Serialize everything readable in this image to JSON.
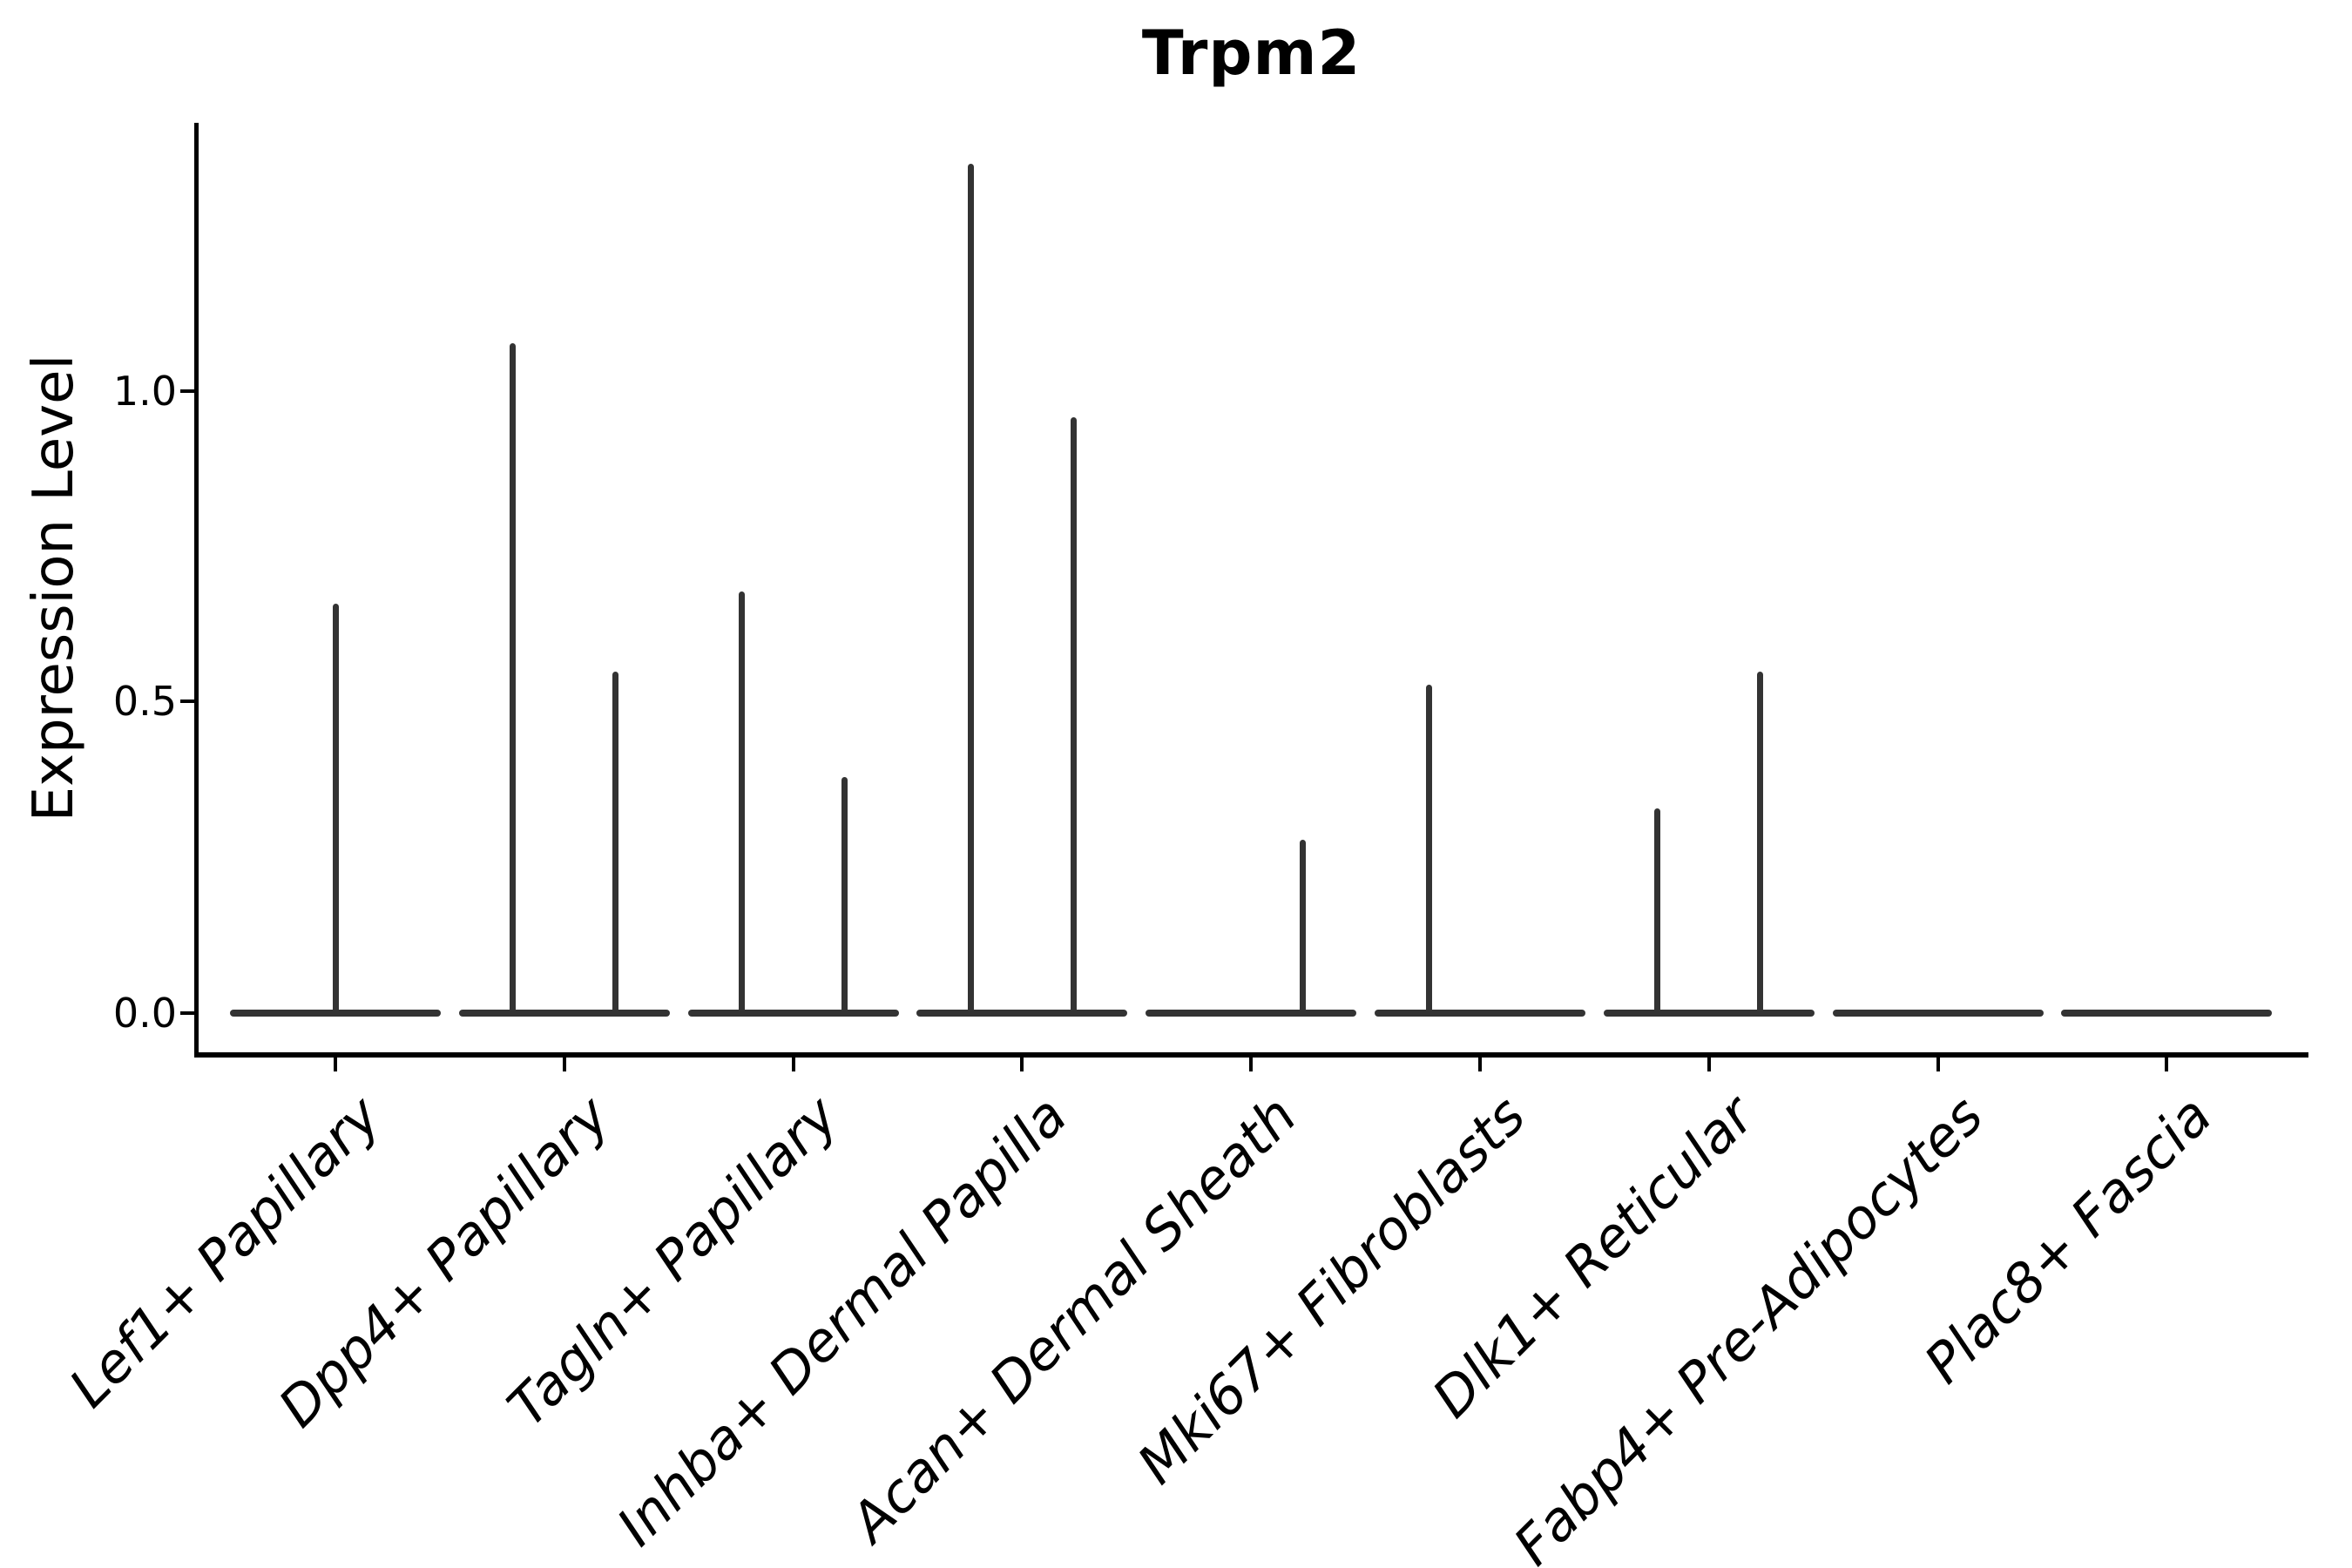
{
  "chart_data": {
    "type": "violin",
    "title": "Trpm2",
    "xlabel": "",
    "ylabel": "Expression Level",
    "y_ticks": [
      0.0,
      0.5,
      1.0
    ],
    "y_tick_labels": [
      "0.0",
      "0.5",
      "1.0"
    ],
    "ylim": [
      -0.07,
      1.44
    ],
    "grid": false,
    "legend_position": "none",
    "x_tick_rotation_degrees": 45,
    "categories": [
      "Lef1+ Papillary",
      "Dpp4+ Papillary",
      "Tagln+ Papillary",
      "Inhba+ Dermal Papilla",
      "Acan+ Dermal Sheath",
      "Mki67+ Fibroblasts",
      "Dlk1+ Reticular",
      "Fabp4+ Pre-Adipocytes",
      "Plac8+ Fascia"
    ],
    "violins": [
      {
        "category": "Lef1+ Papillary",
        "spikes": [
          {
            "pos": "center",
            "max_expression": 0.66
          }
        ]
      },
      {
        "category": "Dpp4+ Papillary",
        "spikes": [
          {
            "pos": "left",
            "max_expression": 1.08
          },
          {
            "pos": "right",
            "max_expression": 0.55
          }
        ]
      },
      {
        "category": "Tagln+ Papillary",
        "spikes": [
          {
            "pos": "left",
            "max_expression": 0.68
          },
          {
            "pos": "right",
            "max_expression": 0.38
          }
        ]
      },
      {
        "category": "Inhba+ Dermal Papilla",
        "spikes": [
          {
            "pos": "left",
            "max_expression": 1.37
          },
          {
            "pos": "right",
            "max_expression": 0.96
          }
        ]
      },
      {
        "category": "Acan+ Dermal Sheath",
        "spikes": [
          {
            "pos": "right",
            "max_expression": 0.28
          }
        ]
      },
      {
        "category": "Mki67+ Fibroblasts",
        "spikes": [
          {
            "pos": "left",
            "max_expression": 0.53
          }
        ]
      },
      {
        "category": "Dlk1+ Reticular",
        "spikes": [
          {
            "pos": "left",
            "max_expression": 0.33
          },
          {
            "pos": "right",
            "max_expression": 0.55
          }
        ]
      },
      {
        "category": "Fabp4+ Pre-Adipocytes",
        "spikes": []
      },
      {
        "category": "Plac8+ Fascia",
        "spikes": []
      }
    ],
    "colors": {
      "violin": "#333333",
      "axis": "#000000",
      "text": "#000000",
      "background": "#ffffff"
    }
  }
}
